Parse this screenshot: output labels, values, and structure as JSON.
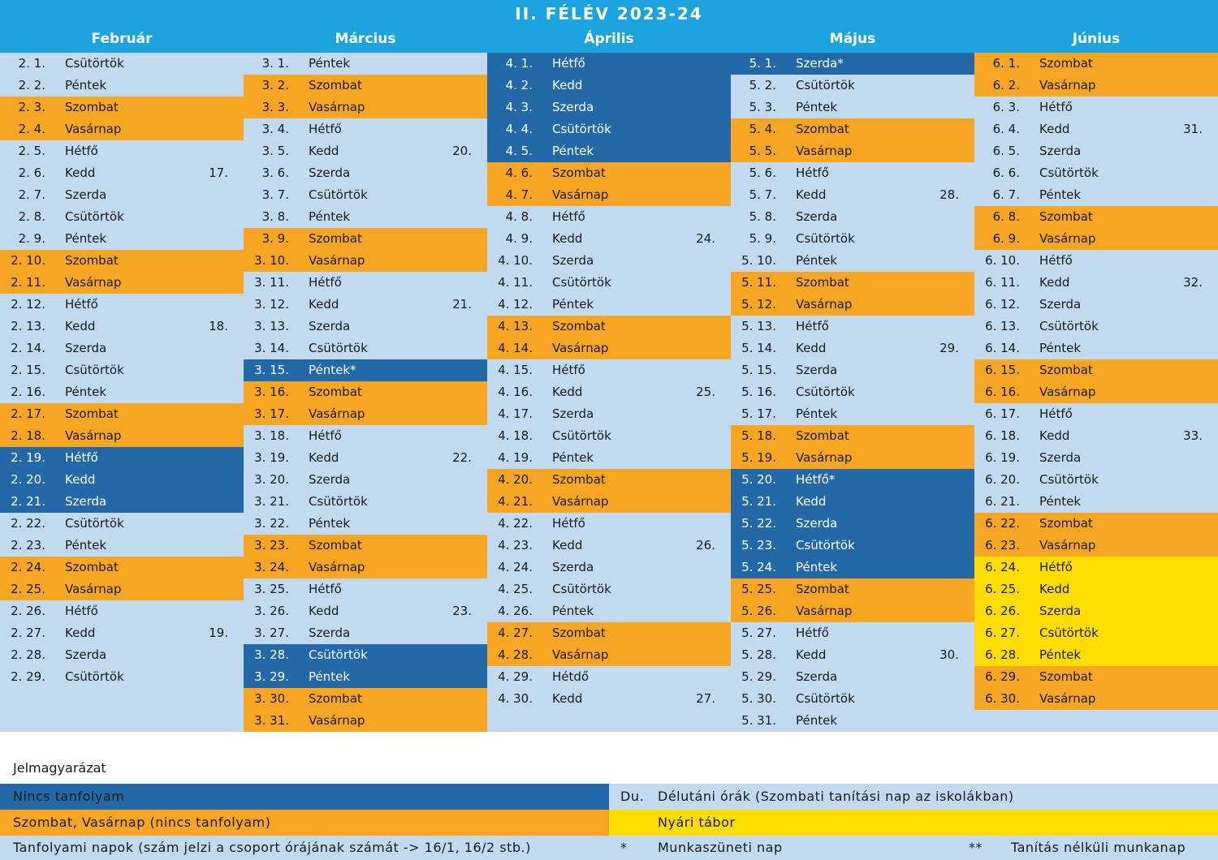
{
  "title": "II. FÉLÉV 2023-24",
  "background": "#c2daf0",
  "months": [
    {
      "name": "Február",
      "days": [
        {
          "date": "2. 1.",
          "day": "Csütörtök",
          "color": "#c2daf0"
        },
        {
          "date": "2. 2.",
          "day": "Péntek",
          "color": "#c2daf0"
        },
        {
          "date": "2. 3.",
          "day": "Szombat",
          "color": "#f6a623"
        },
        {
          "date": "2. 4.",
          "day": "Vasárnap",
          "color": "#f6a623"
        },
        {
          "date": "2. 5.",
          "day": "Hétfő",
          "color": "#c2daf0"
        },
        {
          "date": "2. 6.",
          "day": "Kedd",
          "color": "#c2daf0",
          "week": "17."
        },
        {
          "date": "2. 7.",
          "day": "Szerda",
          "color": "#c2daf0"
        },
        {
          "date": "2. 8.",
          "day": "Csütörtök",
          "color": "#c2daf0"
        },
        {
          "date": "2. 9.",
          "day": "Péntek",
          "color": "#c2daf0"
        },
        {
          "date": "2. 10.",
          "day": "Szombat",
          "color": "#f6a623"
        },
        {
          "date": "2. 11.",
          "day": "Vasárnap",
          "color": "#f6a623"
        },
        {
          "date": "2. 12.",
          "day": "Hétfő",
          "color": "#c2daf0"
        },
        {
          "date": "2. 13.",
          "day": "Kedd",
          "color": "#c2daf0",
          "week": "18."
        },
        {
          "date": "2. 14.",
          "day": "Szerda",
          "color": "#c2daf0"
        },
        {
          "date": "2. 15.",
          "day": "Csütörtök",
          "color": "#c2daf0"
        },
        {
          "date": "2. 16.",
          "day": "Péntek",
          "color": "#c2daf0"
        },
        {
          "date": "2. 17.",
          "day": "Szombat",
          "color": "#f6a623"
        },
        {
          "date": "2. 18.",
          "day": "Vasárnap",
          "color": "#f6a623"
        },
        {
          "date": "2. 19.",
          "day": "Hétfő",
          "color": "#2369a8"
        },
        {
          "date": "2. 20.",
          "day": "Kedd",
          "color": "#2369a8"
        },
        {
          "date": "2. 21.",
          "day": "Szerda",
          "color": "#2369a8"
        },
        {
          "date": "2. 22.",
          "day": "Csütörtök",
          "color": "#c2daf0"
        },
        {
          "date": "2. 23.",
          "day": "Péntek",
          "color": "#c2daf0"
        },
        {
          "date": "2. 24.",
          "day": "Szombat",
          "color": "#f6a623"
        },
        {
          "date": "2. 25.",
          "day": "Vasárnap",
          "color": "#f6a623"
        },
        {
          "date": "2. 26.",
          "day": "Hétfő",
          "color": "#c2daf0"
        },
        {
          "date": "2. 27.",
          "day": "Kedd",
          "color": "#c2daf0",
          "week": "19."
        },
        {
          "date": "2. 28.",
          "day": "Szerda",
          "color": "#c2daf0"
        },
        {
          "date": "2. 29.",
          "day": "Csütörtök",
          "color": "#c2daf0"
        }
      ]
    },
    {
      "name": "Március",
      "days": [
        {
          "date": "3. 1.",
          "day": "Péntek",
          "color": "#c2daf0"
        },
        {
          "date": "3. 2.",
          "day": "Szombat",
          "color": "#f6a623"
        },
        {
          "date": "3. 3.",
          "day": "Vasárnap",
          "color": "#f6a623"
        },
        {
          "date": "3. 4.",
          "day": "Hétfő",
          "color": "#c2daf0"
        },
        {
          "date": "3. 5.",
          "day": "Kedd",
          "color": "#c2daf0",
          "week": "20."
        },
        {
          "date": "3. 6.",
          "day": "Szerda",
          "color": "#c2daf0"
        },
        {
          "date": "3. 7.",
          "day": "Csütörtök",
          "color": "#c2daf0"
        },
        {
          "date": "3. 8.",
          "day": "Péntek",
          "color": "#c2daf0"
        },
        {
          "date": "3. 9.",
          "day": "Szombat",
          "color": "#f6a623"
        },
        {
          "date": "3. 10.",
          "day": "Vasárnap",
          "color": "#f6a623"
        },
        {
          "date": "3. 11.",
          "day": "Hétfő",
          "color": "#c2daf0"
        },
        {
          "date": "3. 12.",
          "day": "Kedd",
          "color": "#c2daf0",
          "week": "21."
        },
        {
          "date": "3. 13.",
          "day": "Szerda",
          "color": "#c2daf0"
        },
        {
          "date": "3. 14.",
          "day": "Csütörtök",
          "color": "#c2daf0"
        },
        {
          "date": "3. 15.",
          "day": "Péntek*",
          "color": "#2369a8"
        },
        {
          "date": "3. 16.",
          "day": "Szombat",
          "color": "#f6a623"
        },
        {
          "date": "3. 17.",
          "day": "Vasárnap",
          "color": "#f6a623"
        },
        {
          "date": "3. 18.",
          "day": "Hétfő",
          "color": "#c2daf0"
        },
        {
          "date": "3. 19.",
          "day": "Kedd",
          "color": "#c2daf0",
          "week": "22."
        },
        {
          "date": "3. 20.",
          "day": "Szerda",
          "color": "#c2daf0"
        },
        {
          "date": "3. 21.",
          "day": "Csütörtök",
          "color": "#c2daf0"
        },
        {
          "date": "3. 22.",
          "day": "Péntek",
          "color": "#c2daf0"
        },
        {
          "date": "3. 23.",
          "day": "Szombat",
          "color": "#f6a623"
        },
        {
          "date": "3. 24.",
          "day": "Vasárnap",
          "color": "#f6a623"
        },
        {
          "date": "3. 25.",
          "day": "Hétfő",
          "color": "#c2daf0"
        },
        {
          "date": "3. 26.",
          "day": "Kedd",
          "color": "#c2daf0",
          "week": "23."
        },
        {
          "date": "3. 27.",
          "day": "Szerda",
          "color": "#c2daf0"
        },
        {
          "date": "3. 28.",
          "day": "Csütörtök",
          "color": "#2369a8"
        },
        {
          "date": "3. 29.",
          "day": "Péntek",
          "color": "#2369a8"
        },
        {
          "date": "3. 30.",
          "day": "Szombat",
          "color": "#f6a623"
        },
        {
          "date": "3. 31.",
          "day": "Vasárnap",
          "color": "#f6a623"
        }
      ]
    },
    {
      "name": "Április",
      "days": [
        {
          "date": "4. 1.",
          "day": "Hétfő",
          "color": "#2369a8"
        },
        {
          "date": "4. 2.",
          "day": "Kedd",
          "color": "#2369a8"
        },
        {
          "date": "4. 3.",
          "day": "Szerda",
          "color": "#2369a8"
        },
        {
          "date": "4. 4.",
          "day": "Csütörtök",
          "color": "#2369a8"
        },
        {
          "date": "4. 5.",
          "day": "Péntek",
          "color": "#2369a8"
        },
        {
          "date": "4. 6.",
          "day": "Szombat",
          "color": "#f6a623"
        },
        {
          "date": "4. 7.",
          "day": "Vasárnap",
          "color": "#f6a623"
        },
        {
          "date": "4. 8.",
          "day": "Hétfő",
          "color": "#c2daf0"
        },
        {
          "date": "4. 9.",
          "day": "Kedd",
          "color": "#c2daf0",
          "week": "24."
        },
        {
          "date": "4. 10.",
          "day": "Szerda",
          "color": "#c2daf0"
        },
        {
          "date": "4. 11.",
          "day": "Csütörtök",
          "color": "#c2daf0"
        },
        {
          "date": "4. 12.",
          "day": "Péntek",
          "color": "#c2daf0"
        },
        {
          "date": "4. 13.",
          "day": "Szombat",
          "color": "#f6a623"
        },
        {
          "date": "4. 14.",
          "day": "Vasárnap",
          "color": "#f6a623"
        },
        {
          "date": "4. 15.",
          "day": "Hétfő",
          "color": "#c2daf0"
        },
        {
          "date": "4. 16.",
          "day": "Kedd",
          "color": "#c2daf0",
          "week": "25."
        },
        {
          "date": "4. 17.",
          "day": "Szerda",
          "color": "#c2daf0"
        },
        {
          "date": "4. 18.",
          "day": "Csütörtök",
          "color": "#c2daf0"
        },
        {
          "date": "4. 19.",
          "day": "Péntek",
          "color": "#c2daf0"
        },
        {
          "date": "4. 20.",
          "day": "Szombat",
          "color": "#f6a623"
        },
        {
          "date": "4. 21.",
          "day": "Vasárnap",
          "color": "#f6a623"
        },
        {
          "date": "4. 22.",
          "day": "Hétfő",
          "color": "#c2daf0"
        },
        {
          "date": "4. 23.",
          "day": "Kedd",
          "color": "#c2daf0",
          "week": "26."
        },
        {
          "date": "4. 24.",
          "day": "Szerda",
          "color": "#c2daf0"
        },
        {
          "date": "4. 25.",
          "day": "Csütörtök",
          "color": "#c2daf0"
        },
        {
          "date": "4. 26.",
          "day": "Péntek",
          "color": "#c2daf0"
        },
        {
          "date": "4. 27.",
          "day": "Szombat",
          "color": "#f6a623"
        },
        {
          "date": "4. 28.",
          "day": "Vasárnap",
          "color": "#f6a623"
        },
        {
          "date": "4. 29.",
          "day": "Hétdő",
          "color": "#c2daf0"
        },
        {
          "date": "4. 30.",
          "day": "Kedd",
          "color": "#c2daf0",
          "week": "27."
        }
      ]
    },
    {
      "name": "Május",
      "days": [
        {
          "date": "5. 1.",
          "day": "Szerda*",
          "color": "#2369a8"
        },
        {
          "date": "5. 2.",
          "day": "Csütörtök",
          "color": "#c2daf0"
        },
        {
          "date": "5. 3.",
          "day": "Péntek",
          "color": "#c2daf0"
        },
        {
          "date": "5. 4.",
          "day": "Szombat",
          "color": "#f6a623"
        },
        {
          "date": "5. 5.",
          "day": "Vasárnap",
          "color": "#f6a623"
        },
        {
          "date": "5. 6.",
          "day": "Hétfő",
          "color": "#c2daf0"
        },
        {
          "date": "5. 7.",
          "day": "Kedd",
          "color": "#c2daf0",
          "week": "28."
        },
        {
          "date": "5. 8.",
          "day": "Szerda",
          "color": "#c2daf0"
        },
        {
          "date": "5. 9.",
          "day": "Csütörtök",
          "color": "#c2daf0"
        },
        {
          "date": "5. 10.",
          "day": "Péntek",
          "color": "#c2daf0"
        },
        {
          "date": "5. 11.",
          "day": "Szombat",
          "color": "#f6a623"
        },
        {
          "date": "5. 12.",
          "day": "Vasárnap",
          "color": "#f6a623"
        },
        {
          "date": "5. 13.",
          "day": "Hétfő",
          "color": "#c2daf0"
        },
        {
          "date": "5. 14.",
          "day": "Kedd",
          "color": "#c2daf0",
          "week": "29."
        },
        {
          "date": "5. 15.",
          "day": "Szerda",
          "color": "#c2daf0"
        },
        {
          "date": "5. 16.",
          "day": "Csütörtök",
          "color": "#c2daf0"
        },
        {
          "date": "5. 17.",
          "day": "Péntek",
          "color": "#c2daf0"
        },
        {
          "date": "5. 18.",
          "day": "Szombat",
          "color": "#f6a623"
        },
        {
          "date": "5. 19.",
          "day": "Vasárnap",
          "color": "#f6a623"
        },
        {
          "date": "5. 20.",
          "day": "Hétfő*",
          "color": "#2369a8"
        },
        {
          "date": "5. 21.",
          "day": "Kedd",
          "color": "#2369a8"
        },
        {
          "date": "5. 22.",
          "day": "Szerda",
          "color": "#2369a8"
        },
        {
          "date": "5. 23.",
          "day": "Csütörtök",
          "color": "#2369a8"
        },
        {
          "date": "5. 24.",
          "day": "Péntek",
          "color": "#2369a8"
        },
        {
          "date": "5. 25.",
          "day": "Szombat",
          "color": "#f6a623"
        },
        {
          "date": "5. 26.",
          "day": "Vasárnap",
          "color": "#f6a623"
        },
        {
          "date": "5. 27.",
          "day": "Hétfő",
          "color": "#c2daf0"
        },
        {
          "date": "5. 28.",
          "day": "Kedd",
          "color": "#c2daf0",
          "week": "30."
        },
        {
          "date": "5. 29.",
          "day": "Szerda",
          "color": "#c2daf0"
        },
        {
          "date": "5. 30.",
          "day": "Csütörtök",
          "color": "#c2daf0"
        },
        {
          "date": "5. 31.",
          "day": "Péntek",
          "color": "#c2daf0"
        }
      ]
    },
    {
      "name": "Június",
      "days": [
        {
          "date": "6. 1.",
          "day": "Szombat",
          "color": "#f6a623"
        },
        {
          "date": "6. 2.",
          "day": "Vasárnap",
          "color": "#f6a623"
        },
        {
          "date": "6. 3.",
          "day": "Hétfő",
          "color": "#c2daf0"
        },
        {
          "date": "6. 4.",
          "day": "Kedd",
          "color": "#c2daf0",
          "week": "31."
        },
        {
          "date": "6. 5.",
          "day": "Szerda",
          "color": "#c2daf0"
        },
        {
          "date": "6. 6.",
          "day": "Csütörtök",
          "color": "#c2daf0"
        },
        {
          "date": "6. 7.",
          "day": "Péntek",
          "color": "#c2daf0"
        },
        {
          "date": "6. 8.",
          "day": "Szombat",
          "color": "#f6a623"
        },
        {
          "date": "6. 9.",
          "day": "Vasárnap",
          "color": "#f6a623"
        },
        {
          "date": "6. 10.",
          "day": "Hétfő",
          "color": "#c2daf0"
        },
        {
          "date": "6. 11.",
          "day": "Kedd",
          "color": "#c2daf0",
          "week": "32."
        },
        {
          "date": "6. 12.",
          "day": "Szerda",
          "color": "#c2daf0"
        },
        {
          "date": "6. 13.",
          "day": "Csütörtök",
          "color": "#c2daf0"
        },
        {
          "date": "6. 14.",
          "day": "Péntek",
          "color": "#c2daf0"
        },
        {
          "date": "6. 15.",
          "day": "Szombat",
          "color": "#f6a623"
        },
        {
          "date": "6. 16.",
          "day": "Vasárnap",
          "color": "#f6a623"
        },
        {
          "date": "6. 17.",
          "day": "Hétfő",
          "color": "#c2daf0"
        },
        {
          "date": "6. 18.",
          "day": "Kedd",
          "color": "#c2daf0",
          "week": "33."
        },
        {
          "date": "6. 19.",
          "day": "Szerda",
          "color": "#c2daf0"
        },
        {
          "date": "6. 20.",
          "day": "Csütörtök",
          "color": "#c2daf0"
        },
        {
          "date": "6. 21.",
          "day": "Péntek",
          "color": "#c2daf0"
        },
        {
          "date": "6. 22.",
          "day": "Szombat",
          "color": "#f6a623"
        },
        {
          "date": "6. 23.",
          "day": "Vasárnap",
          "color": "#f6a623"
        },
        {
          "date": "6. 24.",
          "day": "Hétfő",
          "color": "#ffdd00"
        },
        {
          "date": "6. 25.",
          "day": "Kedd",
          "color": "#ffdd00"
        },
        {
          "date": "6. 26.",
          "day": "Szerda",
          "color": "#ffdd00"
        },
        {
          "date": "6. 27.",
          "day": "Csütörtök",
          "color": "#ffdd00"
        },
        {
          "date": "6. 28.",
          "day": "Péntek",
          "color": "#ffdd00"
        },
        {
          "date": "6. 29.",
          "day": "Szombat",
          "color": "#f6a623"
        },
        {
          "date": "6. 30.",
          "day": "Vasárnap",
          "color": "#f6a623"
        }
      ]
    }
  ],
  "legend": {
    "title": "Jelmagyarázat",
    "items": [
      {
        "label": "Nincs tanfolyam",
        "color": "#2369a8"
      },
      {
        "symbol": "Du.",
        "label": "Délutáni órák (Szombati tanítási nap az iskolákban)",
        "color": "#c2daf0"
      },
      {
        "label": "Szombat, Vasárnap (nincs tanfolyam)",
        "color": "#f6a623"
      },
      {
        "label": "Nyári tábor",
        "color": "#ffdd00"
      },
      {
        "label": "Tanfolyami napok (szám jelzi a csoport órájának számát -> 16/1, 16/2 stb.)",
        "color": "#c2daf0"
      },
      {
        "symbol": "*",
        "label": "Munkaszüneti nap"
      },
      {
        "symbol": "**",
        "label": "Tanítás nélküli munkanap"
      }
    ]
  }
}
